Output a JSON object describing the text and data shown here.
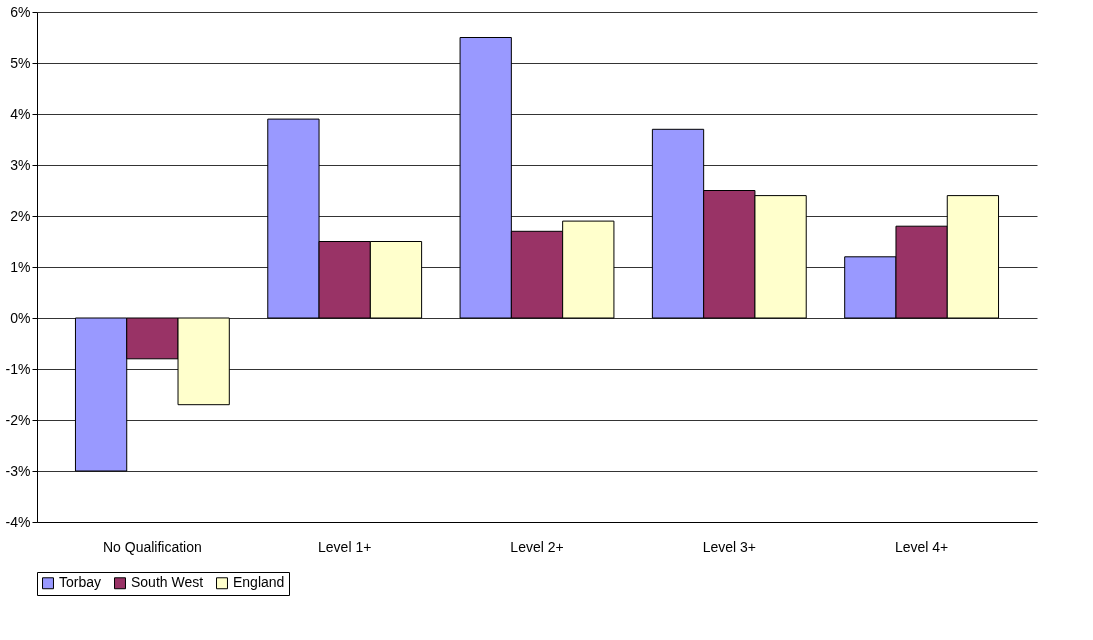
{
  "chart_data": {
    "type": "bar",
    "categories": [
      "No Qualification",
      "Level 1+",
      "Level 2+",
      "Level 3+",
      "Level 4+"
    ],
    "series": [
      {
        "name": "Torbay",
        "color": "#9999ff",
        "values": [
          -3.0,
          3.9,
          5.5,
          3.7,
          1.2
        ]
      },
      {
        "name": "South West",
        "color": "#993366",
        "values": [
          -0.8,
          1.5,
          1.7,
          2.5,
          1.8
        ]
      },
      {
        "name": "England",
        "color": "#ffffcc",
        "values": [
          -1.7,
          1.5,
          1.9,
          2.4,
          2.4
        ]
      }
    ],
    "ylim": [
      -4,
      6
    ],
    "yticks": [
      {
        "value": -4,
        "label": "-4%"
      },
      {
        "value": -3,
        "label": "-3%"
      },
      {
        "value": -2,
        "label": "-2%"
      },
      {
        "value": -1,
        "label": "-1%"
      },
      {
        "value": 0,
        "label": "0%"
      },
      {
        "value": 1,
        "label": "1%"
      },
      {
        "value": 2,
        "label": "2%"
      },
      {
        "value": 3,
        "label": "3%"
      },
      {
        "value": 4,
        "label": "4%"
      },
      {
        "value": 5,
        "label": "5%"
      },
      {
        "value": 6,
        "label": "6%"
      }
    ],
    "grid": "y",
    "legend": "bottom"
  }
}
